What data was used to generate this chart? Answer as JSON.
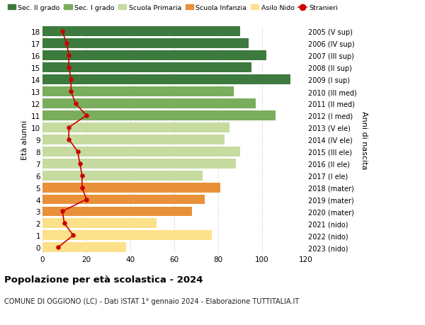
{
  "ages": [
    0,
    1,
    2,
    3,
    4,
    5,
    6,
    7,
    8,
    9,
    10,
    11,
    12,
    13,
    14,
    15,
    16,
    17,
    18
  ],
  "bar_values": [
    38,
    77,
    52,
    68,
    74,
    81,
    73,
    88,
    90,
    83,
    85,
    106,
    97,
    87,
    113,
    95,
    102,
    94,
    90
  ],
  "bar_colors": [
    "#fce08a",
    "#fce08a",
    "#fce08a",
    "#e8913a",
    "#e8913a",
    "#e8913a",
    "#c5dba0",
    "#c5dba0",
    "#c5dba0",
    "#c5dba0",
    "#c5dba0",
    "#7aad5c",
    "#7aad5c",
    "#7aad5c",
    "#3d7a3d",
    "#3d7a3d",
    "#3d7a3d",
    "#3d7a3d",
    "#3d7a3d"
  ],
  "stranieri_values": [
    7,
    14,
    10,
    9,
    20,
    18,
    18,
    17,
    16,
    12,
    12,
    20,
    15,
    13,
    13,
    12,
    12,
    11,
    9
  ],
  "right_labels": [
    "2023 (nido)",
    "2022 (nido)",
    "2021 (nido)",
    "2020 (mater)",
    "2019 (mater)",
    "2018 (mater)",
    "2017 (I ele)",
    "2016 (II ele)",
    "2015 (III ele)",
    "2014 (IV ele)",
    "2013 (V ele)",
    "2012 (I med)",
    "2011 (II med)",
    "2010 (III med)",
    "2009 (I sup)",
    "2008 (II sup)",
    "2007 (III sup)",
    "2006 (IV sup)",
    "2005 (V sup)"
  ],
  "legend_labels": [
    "Sec. II grado",
    "Sec. I grado",
    "Scuola Primaria",
    "Scuola Infanzia",
    "Asilo Nido",
    "Stranieri"
  ],
  "legend_colors": [
    "#3d7a3d",
    "#7aad5c",
    "#c5dba0",
    "#e8913a",
    "#fce08a",
    "#cc0000"
  ],
  "ylabel_left": "Età alunni",
  "ylabel_right": "Anni di nascita",
  "title": "Popolazione per età scolastica - 2024",
  "subtitle": "COMUNE DI OGGIONO (LC) - Dati ISTAT 1° gennaio 2024 - Elaborazione TUTTITALIA.IT",
  "xlim": [
    0,
    120
  ],
  "xticks": [
    0,
    20,
    40,
    60,
    80,
    100,
    120
  ],
  "background_color": "#ffffff",
  "grid_color": "#cccccc"
}
